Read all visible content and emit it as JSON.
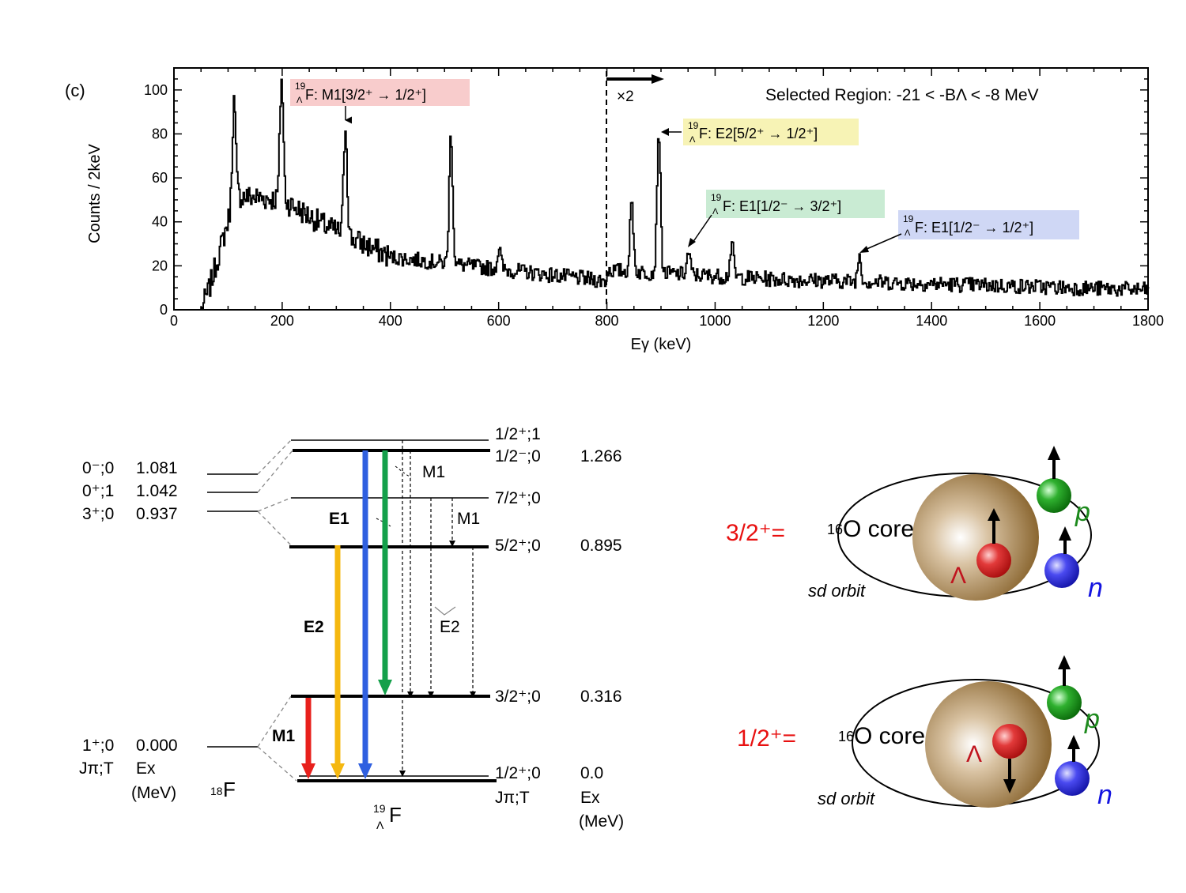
{
  "spectrum": {
    "panel_label": "(c)",
    "ylabel": "Counts / 2keV",
    "xlabel": "Eγ (keV)",
    "region_label": "Selected Region: -21 < -BΛ < -8 MeV",
    "scale_label": "×2",
    "xlim": [
      0,
      1800
    ],
    "ylim": [
      0,
      110
    ],
    "x_ticks": [
      0,
      200,
      400,
      600,
      800,
      1000,
      1200,
      1400,
      1600,
      1800
    ],
    "y_ticks": [
      0,
      20,
      40,
      60,
      80,
      100
    ],
    "x_tick_labels": [
      "0",
      "200",
      "400",
      "600",
      "800",
      "1000",
      "1200",
      "1400",
      "1600",
      "1800"
    ],
    "y_tick_labels": [
      "0",
      "20",
      "40",
      "60",
      "80",
      "100"
    ],
    "scale_boundary_kev": 800,
    "annotations": [
      {
        "name": "m1-peak",
        "nucleus": "19ΛF",
        "transition": "M1[3/2+ → 1/2+]",
        "text": "F: M1[3/2⁺ → 1/2⁺]",
        "energy_kev": 316,
        "color": "#f8cccc"
      },
      {
        "name": "e2-peak",
        "nucleus": "19ΛF",
        "transition": "E2[5/2+ → 1/2+]",
        "text": "F: E2[5/2⁺ → 1/2⁺]",
        "energy_kev": 895,
        "color": "#f7f3b5"
      },
      {
        "name": "e1-peak-a",
        "nucleus": "19ΛF",
        "transition": "E1[1/2- → 3/2+]",
        "text": "F: E1[1/2⁻ → 3/2⁺]",
        "energy_kev": 950,
        "color": "#c9ebd3"
      },
      {
        "name": "e1-peak-b",
        "nucleus": "19ΛF",
        "transition": "E1[1/2- → 1/2+]",
        "text": "F: E1[1/2⁻ → 1/2⁺]",
        "energy_kev": 1266,
        "color": "#cfd7f5"
      }
    ],
    "peaks": [
      {
        "energy_kev": 110,
        "counts": 95
      },
      {
        "energy_kev": 198,
        "counts": 105
      },
      {
        "energy_kev": 316,
        "counts": 84
      },
      {
        "energy_kev": 511,
        "counts": 80
      },
      {
        "energy_kev": 600,
        "counts": 28
      },
      {
        "energy_kev": 845,
        "counts": 49
      },
      {
        "energy_kev": 895,
        "counts": 82
      },
      {
        "energy_kev": 950,
        "counts": 26
      },
      {
        "energy_kev": 1030,
        "counts": 30
      },
      {
        "energy_kev": 1266,
        "counts": 25
      }
    ]
  },
  "level_scheme": {
    "f18": {
      "name": "18F",
      "levels": [
        {
          "jpt": "0⁻;0",
          "ex": "1.081"
        },
        {
          "jpt": "0⁺;1",
          "ex": "1.042"
        },
        {
          "jpt": "3⁺;0",
          "ex": "0.937"
        },
        {
          "jpt": "1⁺;0",
          "ex": "0.000"
        }
      ],
      "col_jpt": "Jπ;T",
      "col_ex": "Ex",
      "col_unit": "(MeV)"
    },
    "f19": {
      "name": "19ΛF",
      "levels": [
        {
          "jpt": "1/2⁺;1",
          "ex": ""
        },
        {
          "jpt": "1/2⁻;0",
          "ex": "1.266"
        },
        {
          "jpt": "7/2⁺;0",
          "ex": ""
        },
        {
          "jpt": "5/2⁺;0",
          "ex": "0.895"
        },
        {
          "jpt": "3/2⁺;0",
          "ex": "0.316"
        },
        {
          "jpt": "1/2⁺;0",
          "ex": "0.0"
        }
      ],
      "col_jpt": "Jπ;T",
      "col_ex": "Ex",
      "col_unit": "(MeV)"
    },
    "transition_labels": {
      "m1_top": "M1",
      "e1": "E1",
      "m1_mid": "M1",
      "e2_left": "E2",
      "e2_right": "E2",
      "m1_bottom": "M1"
    },
    "colors": {
      "m1": "#e8201c",
      "e2": "#f5b810",
      "e1_blue": "#2f5fe0",
      "e1_green": "#14a04a"
    }
  },
  "pictures": {
    "top": {
      "state": "3/2⁺=",
      "core": "O core",
      "core_mass": "16",
      "orbit": "sd orbit",
      "lambda": "Λ",
      "p": "p",
      "n": "n"
    },
    "bottom": {
      "state": "1/2⁺=",
      "core": "O core",
      "core_mass": "16",
      "orbit": "sd orbit",
      "lambda": "Λ",
      "p": "p",
      "n": "n"
    }
  }
}
